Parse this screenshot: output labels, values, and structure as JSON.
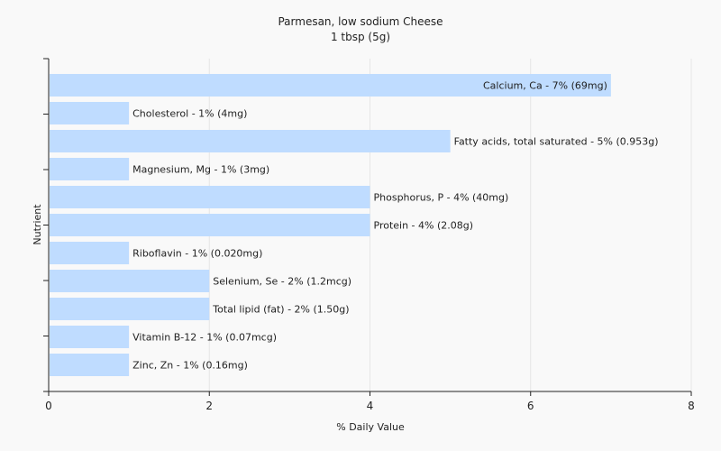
{
  "chart_data": {
    "type": "bar",
    "orientation": "horizontal",
    "title": "Parmesan, low sodium Cheese",
    "subtitle": "1 tbsp (5g)",
    "xlabel": "% Daily Value",
    "ylabel": "Nutrient",
    "xlim": [
      0,
      8
    ],
    "xticks": [
      0,
      2,
      4,
      6,
      8
    ],
    "grid": true,
    "bar_color": "#bfdcff",
    "categories": [
      "Calcium, Ca",
      "Cholesterol",
      "Fatty acids, total saturated",
      "Magnesium, Mg",
      "Phosphorus, P",
      "Protein",
      "Riboflavin",
      "Selenium, Se",
      "Total lipid (fat)",
      "Vitamin B-12",
      "Zinc, Zn"
    ],
    "values": [
      7,
      1,
      5,
      1,
      4,
      4,
      1,
      2,
      2,
      1,
      1
    ],
    "labels": [
      "Calcium, Ca - 7% (69mg)",
      "Cholesterol - 1% (4mg)",
      "Fatty acids, total saturated - 5% (0.953g)",
      "Magnesium, Mg - 1% (3mg)",
      "Phosphorus, P - 4% (40mg)",
      "Protein - 4% (2.08g)",
      "Riboflavin - 1% (0.020mg)",
      "Selenium, Se - 2% (1.2mcg)",
      "Total lipid (fat) - 2% (1.50g)",
      "Vitamin B-12 - 1% (0.07mcg)",
      "Zinc, Zn - 1% (0.16mg)"
    ],
    "label_inside": [
      true,
      false,
      false,
      false,
      false,
      false,
      false,
      false,
      false,
      false,
      false
    ]
  }
}
